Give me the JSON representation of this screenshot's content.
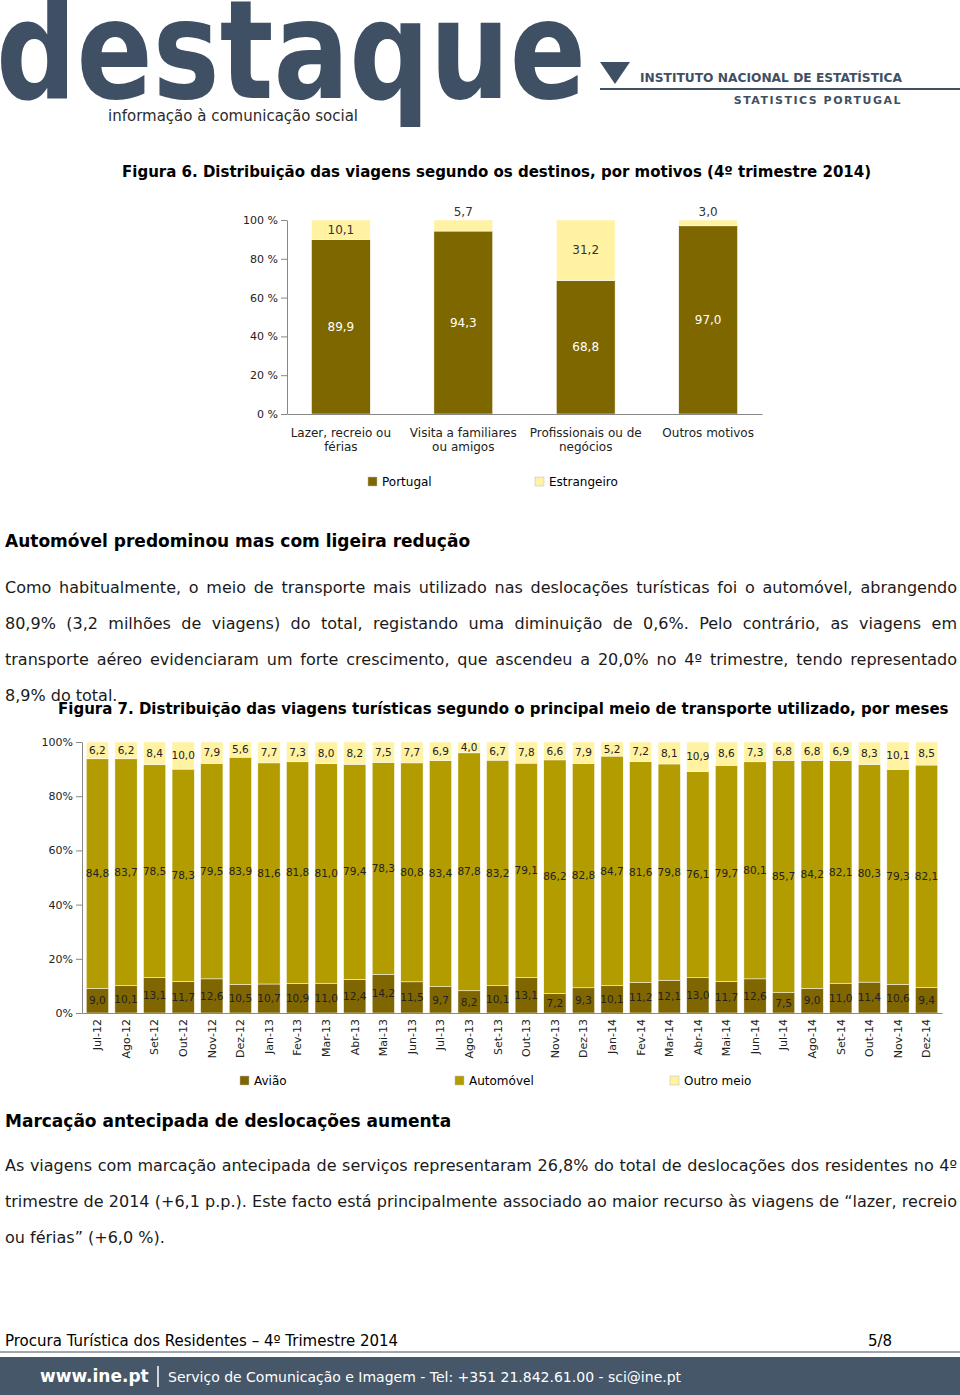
{
  "header": {
    "logo": "destaque",
    "tagline": "informação à comunicação social",
    "institute": "INSTITUTO NACIONAL DE ESTATÍSTICA",
    "institute_en": "STATISTICS PORTUGAL"
  },
  "chart_data": [
    {
      "type": "bar",
      "title": "Figura 6. Distribuição das viagens segundo os destinos, por motivos (4º trimestre 2014)",
      "categories": [
        "Lazer, recreio ou férias",
        "Visita a familiares ou amigos",
        "Profissionais ou de negócios",
        "Outros motivos"
      ],
      "series": [
        {
          "name": "Portugal",
          "color": "#7f6700",
          "values": [
            89.9,
            94.3,
            68.8,
            97.0
          ],
          "value_labels": [
            "89,9",
            "94,3",
            "68,8",
            "97,0"
          ]
        },
        {
          "name": "Estrangeiro",
          "color": "#fff2a3",
          "values": [
            10.1,
            5.7,
            31.2,
            3.0
          ],
          "value_labels": [
            "10,1",
            "5,7",
            "31,2",
            "3,0"
          ]
        }
      ],
      "stacked": true,
      "data_labels": true,
      "legend": "bottom",
      "ylim": [
        0,
        100
      ],
      "yticks": [
        {
          "value": 0,
          "label": "0 %"
        },
        {
          "value": 20,
          "label": "20 %"
        },
        {
          "value": 40,
          "label": "40 %"
        },
        {
          "value": 60,
          "label": "60 %"
        },
        {
          "value": 80,
          "label": "80 %"
        },
        {
          "value": 100,
          "label": "100 %"
        }
      ]
    },
    {
      "type": "bar",
      "title": "Figura 7. Distribuição das viagens turísticas segundo o principal meio de transporte utilizado, por meses",
      "categories": [
        "Jul-12",
        "Ago-12",
        "Set-12",
        "Out-12",
        "Nov-12",
        "Dez-12",
        "Jan-13",
        "Fev-13",
        "Mar-13",
        "Abr-13",
        "Mai-13",
        "Jun-13",
        "Jul-13",
        "Ago-13",
        "Set-13",
        "Out-13",
        "Nov-13",
        "Dez-13",
        "Jan-14",
        "Fev-14",
        "Mar-14",
        "Abr-14",
        "Mai-14",
        "Jun-14",
        "Jul-14",
        "Ago-14",
        "Set-14",
        "Out-14",
        "Nov-14",
        "Dez-14"
      ],
      "series": [
        {
          "name": "Avião",
          "color": "#806600",
          "values": [
            9.0,
            10.1,
            13.1,
            11.7,
            12.6,
            10.5,
            10.7,
            10.9,
            11.0,
            12.4,
            14.2,
            11.5,
            9.7,
            8.2,
            10.1,
            13.1,
            7.2,
            9.3,
            10.1,
            11.2,
            12.1,
            13.0,
            11.7,
            12.6,
            7.5,
            9.0,
            11.0,
            11.4,
            10.6,
            9.4
          ],
          "value_labels": [
            "9,0",
            "10,1",
            "13,1",
            "11,7",
            "12,6",
            "10,5",
            "10,7",
            "10,9",
            "11,0",
            "12,4",
            "14,2",
            "11,5",
            "9,7",
            "8,2",
            "10,1",
            "13,1",
            "7,2",
            "9,3",
            "10,1",
            "11,2",
            "12,1",
            "13,0",
            "11,7",
            "12,6",
            "7,5",
            "9,0",
            "11,0",
            "11,4",
            "10,6",
            "9,4"
          ]
        },
        {
          "name": "Automóvel",
          "color": "#b39c00",
          "values": [
            84.8,
            83.7,
            78.5,
            78.3,
            79.5,
            83.9,
            81.6,
            81.8,
            81.0,
            79.4,
            78.3,
            80.8,
            83.4,
            87.8,
            83.2,
            79.1,
            86.2,
            82.8,
            84.7,
            81.6,
            79.8,
            76.1,
            79.7,
            80.1,
            85.7,
            84.2,
            82.1,
            80.3,
            79.3,
            82.1
          ],
          "value_labels": [
            "84,8",
            "83,7",
            "78,5",
            "78,3",
            "79,5",
            "83,9",
            "81,6",
            "81,8",
            "81,0",
            "79,4",
            "78,3",
            "80,8",
            "83,4",
            "87,8",
            "83,2",
            "79,1",
            "86,2",
            "82,8",
            "84,7",
            "81,6",
            "79,8",
            "76,1",
            "79,7",
            "80,1",
            "85,7",
            "84,2",
            "82,1",
            "80,3",
            "79,3",
            "82,1"
          ]
        },
        {
          "name": "Outro meio",
          "color": "#fff2a3",
          "values": [
            6.2,
            6.2,
            8.4,
            10.0,
            7.9,
            5.6,
            7.7,
            7.3,
            8.0,
            8.2,
            7.5,
            7.7,
            6.9,
            4.0,
            6.7,
            7.8,
            6.6,
            7.9,
            5.2,
            7.2,
            8.1,
            10.9,
            8.6,
            7.3,
            6.8,
            6.8,
            6.9,
            8.3,
            10.1,
            8.5
          ],
          "value_labels": [
            "6,2",
            "6,2",
            "8,4",
            "10,0",
            "7,9",
            "5,6",
            "7,7",
            "7,3",
            "8,0",
            "8,2",
            "7,5",
            "7,7",
            "6,9",
            "4,0",
            "6,7",
            "7,8",
            "6,6",
            "7,9",
            "5,2",
            "7,2",
            "8,1",
            "10,9",
            "8,6",
            "7,3",
            "6,8",
            "6,8",
            "6,9",
            "8,3",
            "10,1",
            "8,5"
          ]
        }
      ],
      "stacked": true,
      "data_labels": true,
      "legend": "bottom",
      "ylim": [
        0,
        100
      ],
      "yticks": [
        {
          "value": 0,
          "label": "0%"
        },
        {
          "value": 20,
          "label": "20%"
        },
        {
          "value": 40,
          "label": "40%"
        },
        {
          "value": 60,
          "label": "60%"
        },
        {
          "value": 80,
          "label": "80%"
        },
        {
          "value": 100,
          "label": "100%"
        }
      ]
    }
  ],
  "sections": [
    {
      "heading": "Automóvel predominou mas com ligeira redução",
      "text": "Como habitualmente, o meio de transporte mais utilizado nas deslocações turísticas foi o automóvel, abrangendo 80,9% (3,2 milhões de viagens) do total, registando uma diminuição de 0,6%. Pelo contrário, as viagens em transporte aéreo evidenciaram um forte crescimento, que ascendeu a 20,0% no 4º trimestre, tendo representado 8,9% do total."
    },
    {
      "heading": "Marcação antecipada de deslocações aumenta",
      "text": "As viagens com marcação antecipada de serviços representaram 26,8% do total de deslocações dos residentes no 4º trimestre de 2014 (+6,1 p.p.). Este facto está principalmente associado ao maior recurso às viagens de “lazer, recreio ou férias” (+6,0 %)."
    }
  ],
  "footer": {
    "title": "Procura Turística dos Residentes – 4º Trimestre 2014",
    "page": "5/8",
    "site": "www.ine.pt",
    "contact": "Serviço de Comunicação e Imagem - Tel: +351 21.842.61.00 - sci@ine.pt"
  }
}
